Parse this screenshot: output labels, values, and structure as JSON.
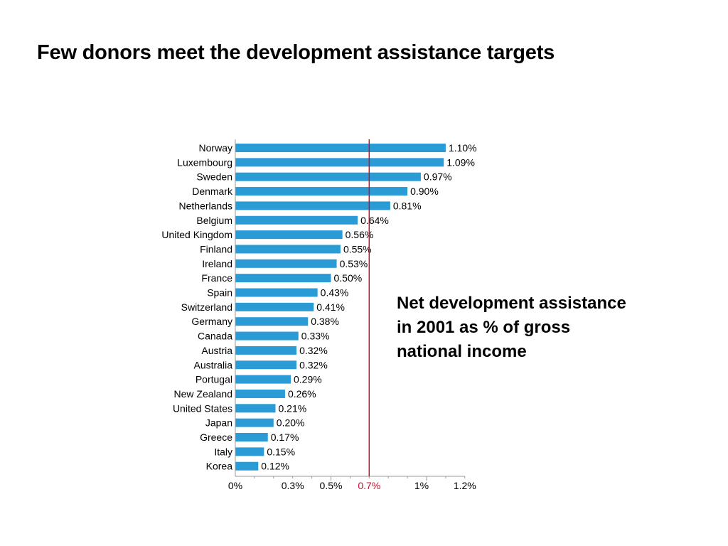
{
  "title": "Few donors meet the development assistance targets",
  "annotation": {
    "lines": [
      "Net development assistance",
      "in 2001 as % of gross",
      "national income"
    ]
  },
  "colors": {
    "bar": "#2b9bd6",
    "target_line": "#c8102e",
    "text": "#000000",
    "axis": "#9a9a9a"
  },
  "chart_data": {
    "type": "bar",
    "orientation": "horizontal",
    "title": "",
    "xlabel": "",
    "ylabel": "",
    "xlim": [
      0,
      1.2
    ],
    "grid": false,
    "legend": "none",
    "categories": [
      "Norway",
      "Luxembourg",
      "Sweden",
      "Denmark",
      "Netherlands",
      "Belgium",
      "United Kingdom",
      "Finland",
      "Ireland",
      "France",
      "Spain",
      "Switzerland",
      "Germany",
      "Canada",
      "Austria",
      "Australia",
      "Portugal",
      "New Zealand",
      "United States",
      "Japan",
      "Greece",
      "Italy",
      "Korea"
    ],
    "values": [
      1.1,
      1.09,
      0.97,
      0.9,
      0.81,
      0.64,
      0.56,
      0.55,
      0.53,
      0.5,
      0.43,
      0.41,
      0.38,
      0.33,
      0.32,
      0.32,
      0.29,
      0.26,
      0.21,
      0.2,
      0.17,
      0.15,
      0.12
    ],
    "data_labels": [
      "1.10%",
      "1.09%",
      "0.97%",
      "0.90%",
      "0.81%",
      "0.64%",
      "0.56%",
      "0.55%",
      "0.53%",
      "0.50%",
      "0.43%",
      "0.41%",
      "0.38%",
      "0.33%",
      "0.32%",
      "0.32%",
      "0.29%",
      "0.26%",
      "0.21%",
      "0.20%",
      "0.17%",
      "0.15%",
      "0.12%"
    ],
    "x_ticks": [
      {
        "value": 0,
        "label": "0%"
      },
      {
        "value": 0.3,
        "label": "0.3%"
      },
      {
        "value": 0.5,
        "label": "0.5%"
      },
      {
        "value": 0.7,
        "label": "0.7%",
        "highlight": true
      },
      {
        "value": 1.0,
        "label": "1%"
      },
      {
        "value": 1.2,
        "label": "1.2%"
      }
    ],
    "reference_line": {
      "value": 0.7
    }
  }
}
